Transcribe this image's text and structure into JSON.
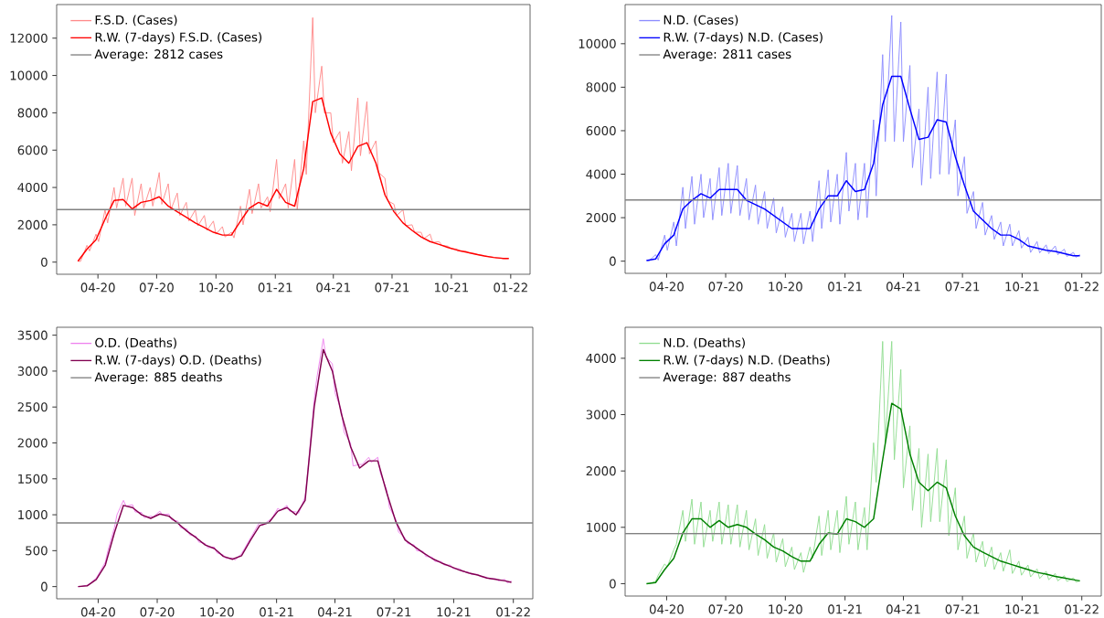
{
  "chart_data": [
    {
      "type": "line",
      "x": [
        "2020-03-01",
        "2020-03-05",
        "2020-03-15",
        "2020-03-19",
        "2020-03-29",
        "2020-04-02",
        "2020-04-12",
        "2020-04-16",
        "2020-04-26",
        "2020-04-30",
        "2020-05-10",
        "2020-05-14",
        "2020-05-24",
        "2020-05-28",
        "2020-06-07",
        "2020-06-11",
        "2020-06-21",
        "2020-06-25",
        "2020-07-05",
        "2020-07-09",
        "2020-07-19",
        "2020-07-23",
        "2020-08-02",
        "2020-08-06",
        "2020-08-16",
        "2020-08-20",
        "2020-08-30",
        "2020-09-03",
        "2020-09-13",
        "2020-09-17",
        "2020-09-27",
        "2020-10-01",
        "2020-10-11",
        "2020-10-15",
        "2020-10-25",
        "2020-10-29",
        "2020-11-08",
        "2020-11-12",
        "2020-11-22",
        "2020-11-26",
        "2020-12-06",
        "2020-12-10",
        "2020-12-20",
        "2020-12-24",
        "2021-01-03",
        "2021-01-07",
        "2021-01-17",
        "2021-01-21",
        "2021-01-31",
        "2021-02-04",
        "2021-02-14",
        "2021-02-18",
        "2021-02-28",
        "2021-03-04",
        "2021-03-14",
        "2021-03-18",
        "2021-03-28",
        "2021-04-01",
        "2021-04-11",
        "2021-04-15",
        "2021-04-25",
        "2021-04-29",
        "2021-05-09",
        "2021-05-13",
        "2021-05-23",
        "2021-05-27",
        "2021-06-06",
        "2021-06-10",
        "2021-06-20",
        "2021-06-24",
        "2021-07-04",
        "2021-07-08",
        "2021-07-18",
        "2021-07-22",
        "2021-08-01",
        "2021-08-05",
        "2021-08-15",
        "2021-08-19",
        "2021-08-29",
        "2021-09-02",
        "2021-09-12",
        "2021-09-16",
        "2021-09-26",
        "2021-09-30",
        "2021-10-10",
        "2021-10-14",
        "2021-10-24",
        "2021-10-28",
        "2021-11-07",
        "2021-11-11",
        "2021-11-21",
        "2021-11-25",
        "2021-12-05",
        "2021-12-09",
        "2021-12-19",
        "2021-12-23",
        "2021-12-29"
      ],
      "series": [
        {
          "name": "F.S.D. (Cases)",
          "color": "#ff8a8a",
          "values": [
            50,
            40,
            900,
            600,
            1500,
            1100,
            2800,
            2100,
            4000,
            2900,
            4500,
            3000,
            4500,
            2500,
            4200,
            2900,
            4000,
            3000,
            4800,
            3100,
            4200,
            2800,
            3700,
            2500,
            3200,
            2200,
            2800,
            1950,
            2500,
            1700,
            2200,
            1500,
            1900,
            1350,
            1600,
            1300,
            3000,
            2000,
            3900,
            2600,
            4200,
            2900,
            3500,
            2700,
            5500,
            3400,
            4200,
            2900,
            5500,
            2800,
            6500,
            4700,
            13100,
            8000,
            10500,
            8000,
            8000,
            6400,
            7000,
            5300,
            7000,
            4900,
            8800,
            5700,
            8600,
            5800,
            6500,
            4800,
            4500,
            3300,
            3100,
            2500,
            2800,
            1950,
            2000,
            1600,
            1600,
            1250,
            1500,
            1050,
            1100,
            900,
            850,
            730,
            700,
            600,
            580,
            500,
            460,
            400,
            350,
            310,
            270,
            230,
            220,
            190,
            200
          ]
        },
        {
          "name": "R.W. (7-days) F.S.D. (Cases)",
          "color": "#ff0000",
          "x": [
            "2020-03-01",
            "2020-03-15",
            "2020-03-29",
            "2020-04-12",
            "2020-04-26",
            "2020-05-10",
            "2020-05-24",
            "2020-06-07",
            "2020-06-21",
            "2020-07-05",
            "2020-07-19",
            "2020-08-02",
            "2020-08-16",
            "2020-08-30",
            "2020-09-13",
            "2020-09-27",
            "2020-10-11",
            "2020-10-25",
            "2020-11-08",
            "2020-11-22",
            "2020-12-06",
            "2020-12-20",
            "2021-01-03",
            "2021-01-17",
            "2021-01-31",
            "2021-02-14",
            "2021-02-28",
            "2021-03-14",
            "2021-03-28",
            "2021-04-11",
            "2021-04-25",
            "2021-05-09",
            "2021-05-23",
            "2021-06-06",
            "2021-06-20",
            "2021-07-04",
            "2021-07-18",
            "2021-08-01",
            "2021-08-15",
            "2021-08-29",
            "2021-09-12",
            "2021-09-26",
            "2021-10-10",
            "2021-10-24",
            "2021-11-07",
            "2021-11-21",
            "2021-12-05",
            "2021-12-19",
            "2021-12-29"
          ],
          "values": [
            50,
            700,
            1200,
            2300,
            3300,
            3350,
            2850,
            3200,
            3300,
            3500,
            3000,
            2700,
            2400,
            2100,
            1850,
            1600,
            1450,
            1450,
            2200,
            2900,
            3200,
            3000,
            3900,
            3200,
            3000,
            5000,
            8600,
            8800,
            6900,
            5800,
            5300,
            6200,
            6400,
            5300,
            3600,
            2700,
            2100,
            1700,
            1350,
            1100,
            950,
            780,
            640,
            540,
            430,
            330,
            250,
            200,
            200
          ]
        }
      ],
      "ref_lines": [
        {
          "axis": "y",
          "value": 2812,
          "label": "Average: 2812 cases",
          "color": "#808080"
        }
      ],
      "xlim": [
        "2020-01-28",
        "2022-01-31"
      ],
      "ylim": [
        -650,
        13800
      ],
      "xticks": [
        {
          "value": "2020-04-01",
          "label": "04-20"
        },
        {
          "value": "2020-07-01",
          "label": "07-20"
        },
        {
          "value": "2020-10-01",
          "label": "10-20"
        },
        {
          "value": "2021-01-01",
          "label": "01-21"
        },
        {
          "value": "2021-04-01",
          "label": "04-21"
        },
        {
          "value": "2021-07-01",
          "label": "07-21"
        },
        {
          "value": "2021-10-01",
          "label": "10-21"
        },
        {
          "value": "2022-01-01",
          "label": "01-22"
        }
      ],
      "yticks": [
        0,
        2000,
        4000,
        6000,
        8000,
        10000,
        12000
      ],
      "legend": "top left"
    },
    {
      "type": "line",
      "x": [
        "2020-03-01",
        "2020-03-05",
        "2020-03-15",
        "2020-03-19",
        "2020-03-29",
        "2020-04-02",
        "2020-04-12",
        "2020-04-16",
        "2020-04-26",
        "2020-04-30",
        "2020-05-10",
        "2020-05-14",
        "2020-05-24",
        "2020-05-28",
        "2020-06-07",
        "2020-06-11",
        "2020-06-21",
        "2020-06-25",
        "2020-07-05",
        "2020-07-09",
        "2020-07-19",
        "2020-07-23",
        "2020-08-02",
        "2020-08-06",
        "2020-08-16",
        "2020-08-20",
        "2020-08-30",
        "2020-09-03",
        "2020-09-13",
        "2020-09-17",
        "2020-09-27",
        "2020-10-01",
        "2020-10-11",
        "2020-10-15",
        "2020-10-25",
        "2020-10-29",
        "2020-11-08",
        "2020-11-12",
        "2020-11-22",
        "2020-11-26",
        "2020-12-06",
        "2020-12-10",
        "2020-12-20",
        "2020-12-24",
        "2021-01-03",
        "2021-01-07",
        "2021-01-17",
        "2021-01-21",
        "2021-01-31",
        "2021-02-04",
        "2021-02-14",
        "2021-02-18",
        "2021-02-28",
        "2021-03-04",
        "2021-03-14",
        "2021-03-18",
        "2021-03-28",
        "2021-04-01",
        "2021-04-11",
        "2021-04-15",
        "2021-04-25",
        "2021-04-29",
        "2021-05-09",
        "2021-05-13",
        "2021-05-23",
        "2021-05-27",
        "2021-06-06",
        "2021-06-10",
        "2021-06-20",
        "2021-06-24",
        "2021-07-04",
        "2021-07-08",
        "2021-07-18",
        "2021-07-22",
        "2021-08-01",
        "2021-08-05",
        "2021-08-15",
        "2021-08-19",
        "2021-08-29",
        "2021-09-02",
        "2021-09-12",
        "2021-09-16",
        "2021-09-26",
        "2021-09-30",
        "2021-10-10",
        "2021-10-14",
        "2021-10-24",
        "2021-10-28",
        "2021-11-07",
        "2021-11-11",
        "2021-11-21",
        "2021-11-25",
        "2021-12-05",
        "2021-12-09",
        "2021-12-19",
        "2021-12-23",
        "2021-12-29"
      ],
      "series": [
        {
          "name": "N.D. (Cases)",
          "color": "#8c8cff",
          "values": [
            40,
            20,
            300,
            50,
            1200,
            500,
            1800,
            700,
            3400,
            1500,
            3900,
            1700,
            4000,
            2000,
            3800,
            1900,
            4300,
            2100,
            4500,
            2200,
            4400,
            2100,
            3800,
            1900,
            3500,
            1700,
            3200,
            1500,
            2900,
            1300,
            2500,
            1100,
            2200,
            900,
            2200,
            800,
            2300,
            900,
            3700,
            1500,
            4200,
            1800,
            4000,
            1700,
            5000,
            2300,
            4500,
            1900,
            4500,
            2000,
            6500,
            3000,
            9500,
            5500,
            11300,
            5500,
            11000,
            5500,
            9000,
            4300,
            7000,
            3500,
            8000,
            3800,
            8700,
            4000,
            8600,
            4000,
            6500,
            3000,
            4800,
            2200,
            3200,
            1500,
            2700,
            1200,
            2100,
            1000,
            1800,
            700,
            1700,
            700,
            1400,
            600,
            1100,
            400,
            900,
            380,
            750,
            350,
            700,
            300,
            550,
            220,
            400,
            180,
            300
          ]
        },
        {
          "name": "R.W. (7-days) N.D. (Cases)",
          "color": "#0000ff",
          "x": [
            "2020-03-01",
            "2020-03-15",
            "2020-03-29",
            "2020-04-12",
            "2020-04-26",
            "2020-05-10",
            "2020-05-24",
            "2020-06-07",
            "2020-06-21",
            "2020-07-05",
            "2020-07-19",
            "2020-08-02",
            "2020-08-16",
            "2020-08-30",
            "2020-09-13",
            "2020-09-27",
            "2020-10-11",
            "2020-10-25",
            "2020-11-08",
            "2020-11-22",
            "2020-12-06",
            "2020-12-20",
            "2021-01-03",
            "2021-01-17",
            "2021-01-31",
            "2021-02-14",
            "2021-02-28",
            "2021-03-14",
            "2021-03-28",
            "2021-04-11",
            "2021-04-25",
            "2021-05-09",
            "2021-05-23",
            "2021-06-06",
            "2021-06-20",
            "2021-07-04",
            "2021-07-18",
            "2021-08-01",
            "2021-08-15",
            "2021-08-29",
            "2021-09-12",
            "2021-09-26",
            "2021-10-10",
            "2021-10-24",
            "2021-11-07",
            "2021-11-21",
            "2021-12-05",
            "2021-12-19",
            "2021-12-29"
          ],
          "values": [
            30,
            100,
            800,
            1200,
            2400,
            2800,
            3100,
            2900,
            3300,
            3300,
            3300,
            2800,
            2600,
            2400,
            2100,
            1800,
            1500,
            1500,
            1500,
            2400,
            3000,
            3000,
            3700,
            3200,
            3300,
            4500,
            7200,
            8500,
            8500,
            7000,
            5600,
            5700,
            6500,
            6400,
            4800,
            3500,
            2300,
            1900,
            1500,
            1200,
            1200,
            1000,
            700,
            600,
            500,
            450,
            350,
            250,
            250
          ]
        }
      ],
      "ref_lines": [
        {
          "axis": "y",
          "value": 2811,
          "label": "Average: 2811 cases",
          "color": "#808080"
        }
      ],
      "xlim": [
        "2020-01-28",
        "2022-01-31"
      ],
      "ylim": [
        -560,
        11800
      ],
      "xticks": [
        {
          "value": "2020-04-01",
          "label": "04-20"
        },
        {
          "value": "2020-07-01",
          "label": "07-20"
        },
        {
          "value": "2020-10-01",
          "label": "10-20"
        },
        {
          "value": "2021-01-01",
          "label": "01-21"
        },
        {
          "value": "2021-04-01",
          "label": "04-21"
        },
        {
          "value": "2021-07-01",
          "label": "07-21"
        },
        {
          "value": "2021-10-01",
          "label": "10-21"
        },
        {
          "value": "2022-01-01",
          "label": "01-22"
        }
      ],
      "yticks": [
        0,
        2000,
        4000,
        6000,
        8000,
        10000
      ],
      "legend": "top left"
    },
    {
      "type": "line",
      "x": [
        "2020-03-01",
        "2020-03-05",
        "2020-03-15",
        "2020-03-19",
        "2020-03-29",
        "2020-04-02",
        "2020-04-12",
        "2020-04-16",
        "2020-04-26",
        "2020-04-30",
        "2020-05-10",
        "2020-05-14",
        "2020-05-24",
        "2020-05-28",
        "2020-06-07",
        "2020-06-11",
        "2020-06-21",
        "2020-06-25",
        "2020-07-05",
        "2020-07-09",
        "2020-07-19",
        "2020-07-23",
        "2020-08-02",
        "2020-08-06",
        "2020-08-16",
        "2020-08-20",
        "2020-08-30",
        "2020-09-03",
        "2020-09-13",
        "2020-09-17",
        "2020-09-27",
        "2020-10-01",
        "2020-10-11",
        "2020-10-15",
        "2020-10-25",
        "2020-10-29",
        "2020-11-08",
        "2020-11-12",
        "2020-11-22",
        "2020-11-26",
        "2020-12-06",
        "2020-12-10",
        "2020-12-20",
        "2020-12-24",
        "2021-01-03",
        "2021-01-07",
        "2021-01-17",
        "2021-01-21",
        "2021-01-31",
        "2021-02-04",
        "2021-02-14",
        "2021-02-18",
        "2021-02-28",
        "2021-03-04",
        "2021-03-14",
        "2021-03-18",
        "2021-03-28",
        "2021-04-01",
        "2021-04-11",
        "2021-04-15",
        "2021-04-25",
        "2021-04-29",
        "2021-05-09",
        "2021-05-13",
        "2021-05-23",
        "2021-05-27",
        "2021-06-06",
        "2021-06-10",
        "2021-06-20",
        "2021-06-24",
        "2021-07-04",
        "2021-07-08",
        "2021-07-18",
        "2021-07-22",
        "2021-08-01",
        "2021-08-05",
        "2021-08-15",
        "2021-08-19",
        "2021-08-29",
        "2021-09-02",
        "2021-09-12",
        "2021-09-16",
        "2021-09-26",
        "2021-09-30",
        "2021-10-10",
        "2021-10-14",
        "2021-10-24",
        "2021-10-28",
        "2021-11-07",
        "2021-11-11",
        "2021-11-21",
        "2021-11-25",
        "2021-12-05",
        "2021-12-09",
        "2021-12-19",
        "2021-12-23",
        "2021-12-29"
      ],
      "series": [
        {
          "name": "O.D. (Deaths)",
          "color": "#ee82ee",
          "values": [
            0,
            0,
            20,
            40,
            120,
            180,
            340,
            500,
            820,
            1000,
            1200,
            1120,
            1140,
            1040,
            1030,
            960,
            980,
            970,
            1050,
            1000,
            1010,
            930,
            910,
            820,
            800,
            720,
            700,
            620,
            600,
            540,
            550,
            470,
            440,
            390,
            400,
            370,
            460,
            520,
            680,
            740,
            900,
            850,
            920,
            940,
            1090,
            1060,
            1130,
            1050,
            1040,
            1020,
            1250,
            1600,
            2600,
            2900,
            3450,
            3200,
            3100,
            2700,
            2450,
            2150,
            2000,
            1680,
            1700,
            1700,
            1800,
            1730,
            1800,
            1580,
            1340,
            1100,
            930,
            760,
            680,
            600,
            580,
            500,
            490,
            420,
            410,
            350,
            350,
            300,
            300,
            250,
            250,
            210,
            200,
            170,
            170,
            140,
            130,
            110,
            110,
            80,
            100,
            50,
            80
          ]
        },
        {
          "name": "R.W. (7-days) O.D. (Deaths)",
          "color": "#800050",
          "x": [
            "2020-03-01",
            "2020-03-15",
            "2020-03-29",
            "2020-04-12",
            "2020-04-26",
            "2020-05-10",
            "2020-05-24",
            "2020-06-07",
            "2020-06-21",
            "2020-07-05",
            "2020-07-19",
            "2020-08-02",
            "2020-08-16",
            "2020-08-30",
            "2020-09-13",
            "2020-09-27",
            "2020-10-11",
            "2020-10-25",
            "2020-11-08",
            "2020-11-22",
            "2020-12-06",
            "2020-12-20",
            "2021-01-03",
            "2021-01-17",
            "2021-01-31",
            "2021-02-14",
            "2021-02-28",
            "2021-03-14",
            "2021-03-28",
            "2021-04-11",
            "2021-04-25",
            "2021-05-09",
            "2021-05-23",
            "2021-06-06",
            "2021-06-20",
            "2021-07-04",
            "2021-07-18",
            "2021-08-01",
            "2021-08-15",
            "2021-08-29",
            "2021-09-12",
            "2021-09-26",
            "2021-10-10",
            "2021-10-24",
            "2021-11-07",
            "2021-11-21",
            "2021-12-05",
            "2021-12-19",
            "2021-12-29"
          ],
          "values": [
            0,
            10,
            100,
            300,
            750,
            1130,
            1100,
            1000,
            950,
            1010,
            980,
            880,
            770,
            680,
            580,
            530,
            420,
            380,
            430,
            650,
            850,
            890,
            1050,
            1100,
            1000,
            1200,
            2500,
            3300,
            3000,
            2400,
            1950,
            1650,
            1750,
            1750,
            1300,
            900,
            650,
            560,
            470,
            390,
            330,
            280,
            230,
            190,
            160,
            120,
            100,
            80,
            60
          ]
        }
      ],
      "ref_lines": [
        {
          "axis": "y",
          "value": 885,
          "label": "Average: 885 deaths",
          "color": "#808080"
        }
      ],
      "xlim": [
        "2020-01-28",
        "2022-01-31"
      ],
      "ylim": [
        -170,
        3610
      ],
      "xticks": [
        {
          "value": "2020-04-01",
          "label": "04-20"
        },
        {
          "value": "2020-07-01",
          "label": "07-20"
        },
        {
          "value": "2020-10-01",
          "label": "10-20"
        },
        {
          "value": "2021-01-01",
          "label": "01-21"
        },
        {
          "value": "2021-04-01",
          "label": "04-21"
        },
        {
          "value": "2021-07-01",
          "label": "07-21"
        },
        {
          "value": "2021-10-01",
          "label": "10-21"
        },
        {
          "value": "2022-01-01",
          "label": "01-22"
        }
      ],
      "yticks": [
        0,
        500,
        1000,
        1500,
        2000,
        2500,
        3000,
        3500
      ],
      "legend": "top left"
    },
    {
      "type": "line",
      "x": [
        "2020-03-01",
        "2020-03-05",
        "2020-03-15",
        "2020-03-19",
        "2020-03-29",
        "2020-04-02",
        "2020-04-12",
        "2020-04-16",
        "2020-04-26",
        "2020-04-30",
        "2020-05-10",
        "2020-05-14",
        "2020-05-24",
        "2020-05-28",
        "2020-06-07",
        "2020-06-11",
        "2020-06-21",
        "2020-06-25",
        "2020-07-05",
        "2020-07-09",
        "2020-07-19",
        "2020-07-23",
        "2020-08-02",
        "2020-08-06",
        "2020-08-16",
        "2020-08-20",
        "2020-08-30",
        "2020-09-03",
        "2020-09-13",
        "2020-09-17",
        "2020-09-27",
        "2020-10-01",
        "2020-10-11",
        "2020-10-15",
        "2020-10-25",
        "2020-10-29",
        "2020-11-08",
        "2020-11-12",
        "2020-11-22",
        "2020-11-26",
        "2020-12-06",
        "2020-12-10",
        "2020-12-20",
        "2020-12-24",
        "2021-01-03",
        "2021-01-07",
        "2021-01-17",
        "2021-01-21",
        "2021-01-31",
        "2021-02-04",
        "2021-02-14",
        "2021-02-18",
        "2021-02-28",
        "2021-03-04",
        "2021-03-14",
        "2021-03-18",
        "2021-03-28",
        "2021-04-01",
        "2021-04-11",
        "2021-04-15",
        "2021-04-25",
        "2021-04-29",
        "2021-05-09",
        "2021-05-13",
        "2021-05-23",
        "2021-05-27",
        "2021-06-06",
        "2021-06-10",
        "2021-06-20",
        "2021-06-24",
        "2021-07-04",
        "2021-07-08",
        "2021-07-18",
        "2021-07-22",
        "2021-08-01",
        "2021-08-05",
        "2021-08-15",
        "2021-08-19",
        "2021-08-29",
        "2021-09-02",
        "2021-09-12",
        "2021-09-16",
        "2021-09-26",
        "2021-09-30",
        "2021-10-10",
        "2021-10-14",
        "2021-10-24",
        "2021-10-28",
        "2021-11-07",
        "2021-11-11",
        "2021-11-21",
        "2021-11-25",
        "2021-12-05",
        "2021-12-09",
        "2021-12-19",
        "2021-12-23",
        "2021-12-29"
      ],
      "series": [
        {
          "name": "N.D. (Deaths)",
          "color": "#90dd90",
          "values": [
            0,
            0,
            40,
            150,
            350,
            300,
            600,
            700,
            1300,
            750,
            1500,
            700,
            1450,
            650,
            1300,
            750,
            1450,
            700,
            1400,
            700,
            1400,
            650,
            1300,
            600,
            1150,
            500,
            1050,
            450,
            900,
            380,
            800,
            300,
            650,
            250,
            550,
            200,
            650,
            450,
            1200,
            500,
            1300,
            600,
            1300,
            550,
            1550,
            700,
            1450,
            600,
            1350,
            600,
            2500,
            1800,
            4300,
            2500,
            4300,
            2200,
            3800,
            1700,
            2800,
            1300,
            2400,
            1000,
            2300,
            1100,
            2400,
            1100,
            2200,
            850,
            1700,
            600,
            1200,
            450,
            900,
            380,
            750,
            300,
            650,
            250,
            550,
            220,
            600,
            180,
            400,
            150,
            330,
            120,
            260,
            90,
            220,
            70,
            180,
            50,
            140,
            40,
            100,
            30,
            50
          ]
        },
        {
          "name": "R.W. (7-days) N.D. (Deaths)",
          "color": "#008000",
          "x": [
            "2020-03-01",
            "2020-03-15",
            "2020-03-29",
            "2020-04-12",
            "2020-04-26",
            "2020-05-10",
            "2020-05-24",
            "2020-06-07",
            "2020-06-21",
            "2020-07-05",
            "2020-07-19",
            "2020-08-02",
            "2020-08-16",
            "2020-08-30",
            "2020-09-13",
            "2020-09-27",
            "2020-10-11",
            "2020-10-25",
            "2020-11-08",
            "2020-11-22",
            "2020-12-06",
            "2020-12-20",
            "2021-01-03",
            "2021-01-17",
            "2021-01-31",
            "2021-02-14",
            "2021-02-28",
            "2021-03-14",
            "2021-03-28",
            "2021-04-11",
            "2021-04-25",
            "2021-05-09",
            "2021-05-23",
            "2021-06-06",
            "2021-06-20",
            "2021-07-04",
            "2021-07-18",
            "2021-08-01",
            "2021-08-15",
            "2021-08-29",
            "2021-09-12",
            "2021-09-26",
            "2021-10-10",
            "2021-10-24",
            "2021-11-07",
            "2021-11-21",
            "2021-12-05",
            "2021-12-19",
            "2021-12-29"
          ],
          "values": [
            0,
            20,
            250,
            450,
            900,
            1150,
            1150,
            1000,
            1120,
            1000,
            1050,
            1000,
            880,
            780,
            650,
            580,
            480,
            400,
            400,
            700,
            900,
            880,
            1150,
            1100,
            1000,
            1150,
            2200,
            3200,
            3100,
            2300,
            1800,
            1650,
            1800,
            1700,
            1200,
            850,
            650,
            560,
            480,
            400,
            350,
            300,
            250,
            200,
            170,
            130,
            100,
            70,
            50
          ]
        }
      ],
      "ref_lines": [
        {
          "axis": "y",
          "value": 887,
          "label": "Average: 887 deaths",
          "color": "#808080"
        }
      ],
      "xlim": [
        "2020-01-28",
        "2022-01-31"
      ],
      "ylim": [
        -220,
        4550
      ],
      "xticks": [
        {
          "value": "2020-04-01",
          "label": "04-20"
        },
        {
          "value": "2020-07-01",
          "label": "07-20"
        },
        {
          "value": "2020-10-01",
          "label": "10-20"
        },
        {
          "value": "2021-01-01",
          "label": "01-21"
        },
        {
          "value": "2021-04-01",
          "label": "04-21"
        },
        {
          "value": "2021-07-01",
          "label": "07-21"
        },
        {
          "value": "2021-10-01",
          "label": "10-21"
        },
        {
          "value": "2022-01-01",
          "label": "01-22"
        }
      ],
      "yticks": [
        0,
        1000,
        2000,
        3000,
        4000
      ],
      "legend": "top left"
    }
  ]
}
